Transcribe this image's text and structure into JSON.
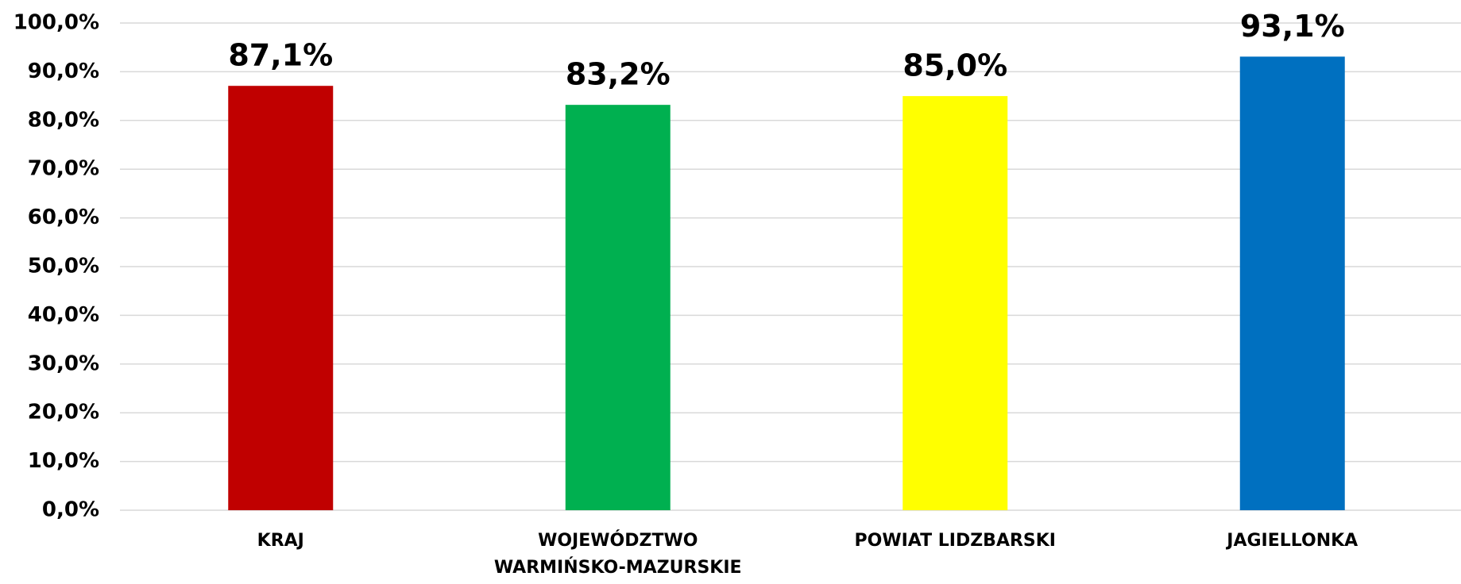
{
  "chart_data": {
    "type": "bar",
    "categories": [
      "KRAJ",
      "WOJEWÓDZTWO WARMIŃSKO-MAZURSKIE",
      "POWIAT LIDZBARSKI",
      "JAGIELLONKA"
    ],
    "values": [
      87.1,
      83.2,
      85.0,
      93.1
    ],
    "value_labels": [
      "87,1%",
      "83,2%",
      "85,0%",
      "93,1%"
    ],
    "colors": [
      "#c00000",
      "#00b050",
      "#ffff00",
      "#0070c0"
    ],
    "ylim": [
      0,
      100
    ],
    "yticks": [
      {
        "value": 0,
        "label": "0,0%"
      },
      {
        "value": 10,
        "label": "10,0%"
      },
      {
        "value": 20,
        "label": "20,0%"
      },
      {
        "value": 30,
        "label": "30,0%"
      },
      {
        "value": 40,
        "label": "40,0%"
      },
      {
        "value": 50,
        "label": "50,0%"
      },
      {
        "value": 60,
        "label": "60,0%"
      },
      {
        "value": 70,
        "label": "70,0%"
      },
      {
        "value": 80,
        "label": "80,0%"
      },
      {
        "value": 90,
        "label": "90,0%"
      },
      {
        "value": 100,
        "label": "100,0%"
      }
    ],
    "grid": true
  }
}
